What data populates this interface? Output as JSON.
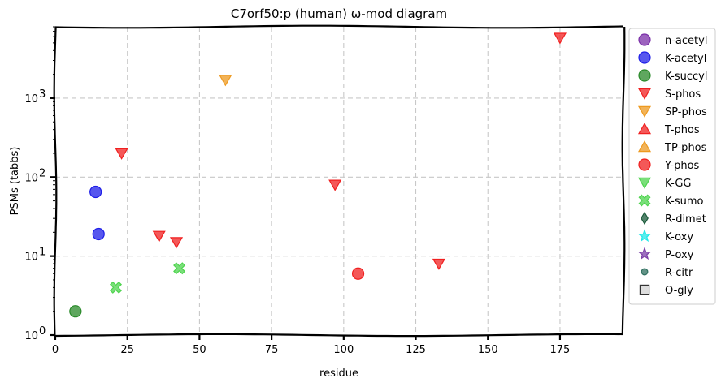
{
  "chart_data": {
    "type": "scatter",
    "title": "C7orf50:p (human) ω-mod diagram",
    "xlabel": "residue",
    "ylabel": "PSMs (tabbs)",
    "xlim": [
      0,
      197
    ],
    "xticks": [
      0,
      25,
      50,
      75,
      100,
      125,
      150,
      175
    ],
    "xtick_labels": [
      "0",
      "25",
      "50",
      "75",
      "100",
      "125",
      "150",
      "175"
    ],
    "y_scale": "log",
    "ylim": [
      1,
      8000
    ],
    "yticks": [
      1,
      10,
      100,
      1000
    ],
    "ytick_labels": [
      "10",
      "10",
      "10",
      "10"
    ],
    "ytick_exponents": [
      "0",
      "1",
      "2",
      "3"
    ],
    "grid": true,
    "legend_position": "outside-right",
    "series": [
      {
        "name": "n-acetyl",
        "marker": "circle",
        "color": "#7b2fa8",
        "points": []
      },
      {
        "name": "K-acetyl",
        "marker": "circle",
        "color": "#1f1fe8",
        "points": [
          {
            "x": 14,
            "y": 65
          },
          {
            "x": 15,
            "y": 19
          }
        ]
      },
      {
        "name": "K-succyl",
        "marker": "circle",
        "color": "#2a8a2a",
        "points": [
          {
            "x": 7,
            "y": 2
          }
        ]
      },
      {
        "name": "S-phos",
        "marker": "triangle-down",
        "color": "#f02020",
        "points": [
          {
            "x": 23,
            "y": 200
          },
          {
            "x": 36,
            "y": 18
          },
          {
            "x": 42,
            "y": 15
          },
          {
            "x": 97,
            "y": 80
          },
          {
            "x": 133,
            "y": 8
          },
          {
            "x": 175,
            "y": 5800
          }
        ]
      },
      {
        "name": "SP-phos",
        "marker": "triangle-down",
        "color": "#ee9a20",
        "points": [
          {
            "x": 59,
            "y": 1700
          }
        ]
      },
      {
        "name": "T-phos",
        "marker": "triangle-up",
        "color": "#f02020",
        "points": []
      },
      {
        "name": "TP-phos",
        "marker": "triangle-up",
        "color": "#ee9a20",
        "points": []
      },
      {
        "name": "Y-phos",
        "marker": "circle",
        "color": "#f02020",
        "points": [
          {
            "x": 105,
            "y": 6
          }
        ]
      },
      {
        "name": "K-GG",
        "marker": "triangle-down",
        "color": "#4ed44e",
        "points": []
      },
      {
        "name": "K-sumo",
        "marker": "x",
        "color": "#4ed44e",
        "points": [
          {
            "x": 21,
            "y": 4
          },
          {
            "x": 43,
            "y": 7
          }
        ]
      },
      {
        "name": "R-dimet",
        "marker": "diamond",
        "color": "#1a5a3a",
        "points": []
      },
      {
        "name": "K-oxy",
        "marker": "star",
        "color": "#20e8e8",
        "points": []
      },
      {
        "name": "P-oxy",
        "marker": "star",
        "color": "#7b3fa8",
        "points": []
      },
      {
        "name": "R-citr",
        "marker": "small-circle",
        "color": "#2f6f5f",
        "points": []
      },
      {
        "name": "O-gly",
        "marker": "square",
        "color": "#dddddd",
        "points": []
      }
    ]
  }
}
